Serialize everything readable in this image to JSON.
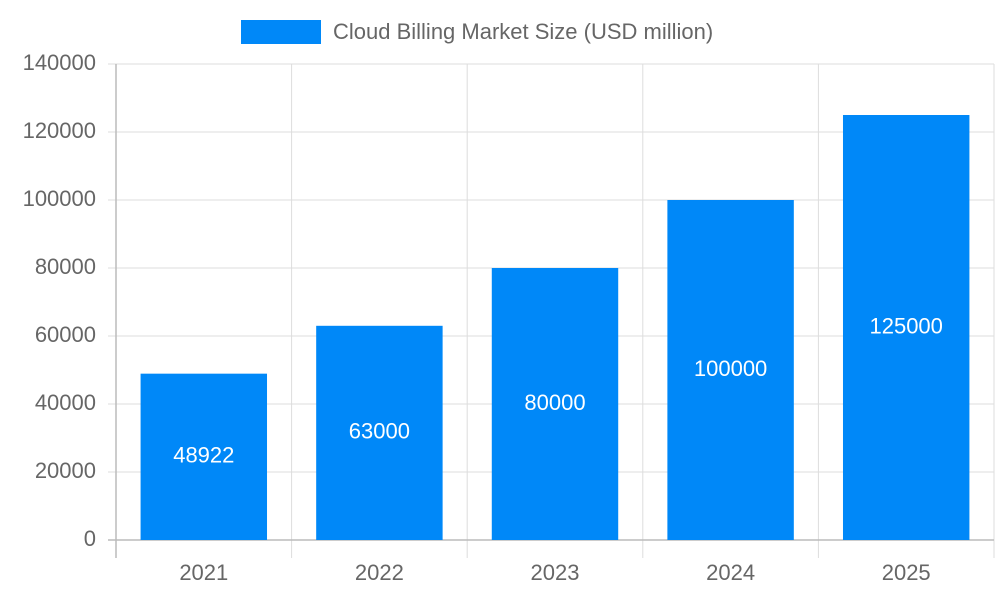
{
  "chart_data": {
    "type": "bar",
    "categories": [
      "2021",
      "2022",
      "2023",
      "2024",
      "2025"
    ],
    "series": [
      {
        "name": "Cloud Billing Market Size (USD million)",
        "color": "#0088f8",
        "values": [
          48922,
          63000,
          80000,
          100000,
          125000
        ]
      }
    ],
    "ylim": [
      0,
      140000
    ],
    "yticks": [
      0,
      20000,
      40000,
      60000,
      80000,
      100000,
      120000,
      140000
    ],
    "grid": true,
    "legend": "top",
    "data_labels": true
  }
}
